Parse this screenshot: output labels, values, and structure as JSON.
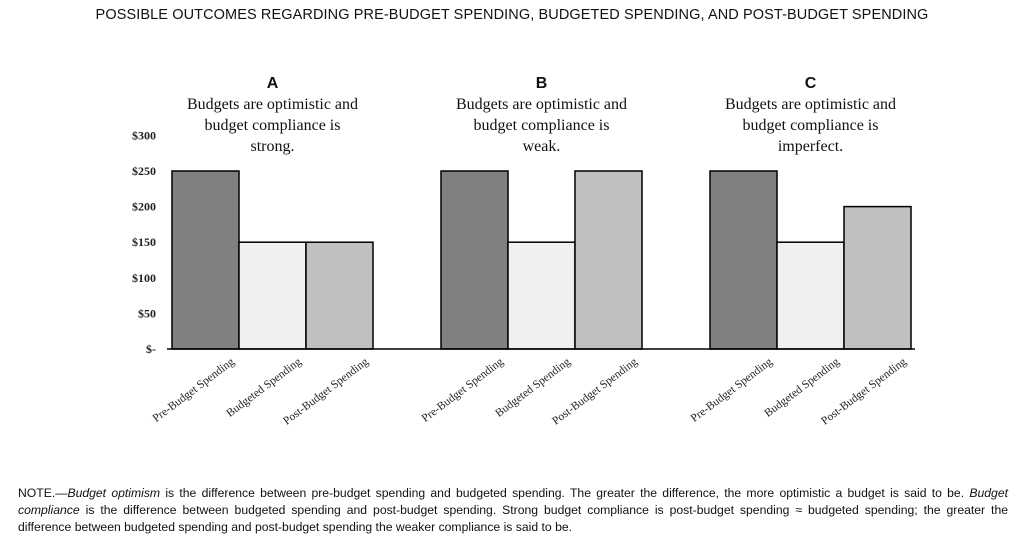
{
  "title": "POSSIBLE OUTCOMES REGARDING PRE-BUDGET SPENDING, BUDGETED SPENDING, AND POST-BUDGET SPENDING",
  "chart_data": {
    "type": "bar",
    "title": "POSSIBLE OUTCOMES REGARDING PRE-BUDGET SPENDING, BUDGETED SPENDING, AND POST-BUDGET SPENDING",
    "ylim": [
      0,
      300
    ],
    "yticks": [
      0,
      50,
      100,
      150,
      200,
      250,
      300
    ],
    "ytick_labels": [
      "$-",
      "$50",
      "$100",
      "$150",
      "$200",
      "$250",
      "$300"
    ],
    "grid": false,
    "categories": [
      "Pre-Budget Spending",
      "Budgeted Spending",
      "Post-Budget Spending"
    ],
    "bar_colors": [
      "#808080",
      "#f0f0f0",
      "#c0c0c0"
    ],
    "panels": [
      {
        "letter": "A",
        "desc": [
          "Budgets are optimistic and",
          "budget compliance is",
          "strong."
        ],
        "values": [
          250,
          150,
          150
        ]
      },
      {
        "letter": "B",
        "desc": [
          "Budgets are optimistic and",
          "budget compliance is",
          "weak."
        ],
        "values": [
          250,
          150,
          250
        ]
      },
      {
        "letter": "C",
        "desc": [
          "Budgets are optimistic and",
          "budget compliance is",
          "imperfect."
        ],
        "values": [
          250,
          150,
          200
        ]
      }
    ]
  },
  "note": {
    "lead": "NOTE.—",
    "term1": "Budget optimism",
    "text1": " is the difference between pre-budget spending and budgeted spending. The greater the difference, the more optimistic a budget is said to be. ",
    "term2": "Budget compliance",
    "text2": " is the difference between budgeted spending and post-budget spending. Strong budget compliance is post-budget spending ≈ budgeted spending; the greater the difference between budgeted spending and post-budget spending the weaker compliance is said to be."
  }
}
